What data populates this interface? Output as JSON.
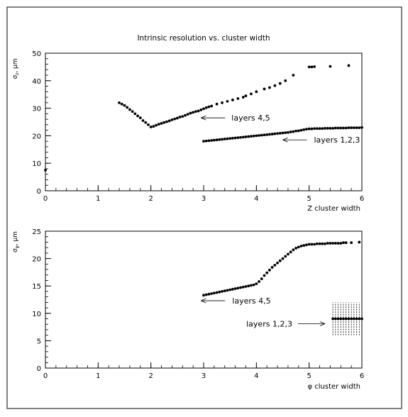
{
  "title": "Intrinsic resolution vs. cluster width",
  "chart_data": [
    {
      "type": "scatter",
      "xlabel": "Z cluster width",
      "ylabel": "σ_z, μm",
      "xlim": [
        0,
        6
      ],
      "ylim": [
        0,
        50
      ],
      "xticks": [
        "0",
        "1",
        "2",
        "3",
        "4",
        "5",
        "6"
      ],
      "yticks": [
        "0",
        "10",
        "20",
        "30",
        "40",
        "50"
      ],
      "grid": false,
      "series": [
        {
          "name": "layers 4,5",
          "x": [
            1.4,
            1.45,
            1.5,
            1.55,
            1.6,
            1.65,
            1.7,
            1.75,
            1.8,
            1.85,
            1.9,
            1.95,
            2.0,
            2.05,
            2.1,
            2.15,
            2.2,
            2.25,
            2.3,
            2.35,
            2.4,
            2.45,
            2.5,
            2.55,
            2.6,
            2.65,
            2.7,
            2.75,
            2.8,
            2.85,
            2.9,
            2.95,
            3.0,
            3.05,
            3.1,
            3.15,
            3.25,
            3.35,
            3.45,
            3.55,
            3.65,
            3.75,
            3.8,
            3.9,
            4.0,
            4.15,
            4.25,
            4.35,
            4.45,
            4.55,
            4.7,
            5.0,
            5.05,
            5.1,
            5.4,
            5.75
          ],
          "y": [
            32.0,
            31.5,
            31.0,
            30.3,
            29.5,
            28.8,
            28.0,
            27.2,
            26.5,
            25.5,
            24.8,
            24.0,
            23.2,
            23.4,
            23.8,
            24.2,
            24.5,
            24.8,
            25.1,
            25.4,
            25.8,
            26.1,
            26.4,
            26.8,
            27.0,
            27.4,
            27.8,
            28.2,
            28.5,
            28.8,
            29.0,
            29.4,
            29.8,
            30.2,
            30.5,
            30.8,
            31.5,
            32.0,
            32.5,
            33.0,
            33.5,
            34.0,
            34.5,
            35.2,
            36.0,
            37.0,
            37.5,
            38.2,
            39.0,
            40.0,
            42.0,
            45.0,
            45.0,
            45.1,
            45.2,
            45.5
          ]
        },
        {
          "name": "layers 1,2,3",
          "x": [
            3.0,
            3.05,
            3.1,
            3.15,
            3.2,
            3.25,
            3.3,
            3.35,
            3.4,
            3.45,
            3.5,
            3.55,
            3.6,
            3.65,
            3.7,
            3.75,
            3.8,
            3.85,
            3.9,
            3.95,
            4.0,
            4.05,
            4.1,
            4.15,
            4.2,
            4.25,
            4.3,
            4.35,
            4.4,
            4.45,
            4.5,
            4.55,
            4.6,
            4.65,
            4.7,
            4.75,
            4.8,
            4.85,
            4.9,
            4.95,
            5.0,
            5.05,
            5.1,
            5.15,
            5.2,
            5.25,
            5.3,
            5.35,
            5.4,
            5.45,
            5.5,
            5.55,
            5.6,
            5.65,
            5.7,
            5.75,
            5.8,
            5.85,
            5.9,
            5.95,
            6.0
          ],
          "y": [
            18.0,
            18.1,
            18.2,
            18.3,
            18.4,
            18.5,
            18.6,
            18.7,
            18.8,
            18.9,
            19.0,
            19.1,
            19.2,
            19.3,
            19.4,
            19.5,
            19.6,
            19.7,
            19.8,
            19.9,
            20.0,
            20.1,
            20.2,
            20.3,
            20.4,
            20.5,
            20.6,
            20.7,
            20.8,
            20.9,
            21.0,
            21.1,
            21.2,
            21.4,
            21.5,
            21.7,
            21.8,
            22.0,
            22.2,
            22.4,
            22.5,
            22.5,
            22.6,
            22.6,
            22.6,
            22.6,
            22.7,
            22.7,
            22.7,
            22.7,
            22.8,
            22.8,
            22.8,
            22.8,
            22.8,
            22.9,
            22.9,
            22.9,
            22.9,
            22.9,
            23.0
          ]
        },
        {
          "name": "",
          "x": [
            0.0
          ],
          "y": [
            7.5
          ]
        }
      ],
      "annotations": [
        {
          "text": "layers 4,5",
          "arrow_to": [
            2.95,
            26.5
          ]
        },
        {
          "text": "layers 1,2,3",
          "arrow_to": [
            4.5,
            18.5
          ]
        }
      ]
    },
    {
      "type": "scatter",
      "xlabel": "φ cluster width",
      "ylabel": "σ_φ, μm",
      "xlim": [
        0,
        6
      ],
      "ylim": [
        0,
        25
      ],
      "xticks": [
        "0",
        "1",
        "2",
        "3",
        "4",
        "5",
        "6"
      ],
      "yticks": [
        "0",
        "5",
        "10",
        "15",
        "20",
        "25"
      ],
      "grid": false,
      "series": [
        {
          "name": "layers 4,5",
          "x": [
            3.0,
            3.05,
            3.1,
            3.15,
            3.2,
            3.25,
            3.3,
            3.35,
            3.4,
            3.45,
            3.5,
            3.55,
            3.6,
            3.65,
            3.7,
            3.75,
            3.8,
            3.85,
            3.9,
            3.95,
            4.0,
            4.05,
            4.1,
            4.15,
            4.2,
            4.25,
            4.3,
            4.35,
            4.4,
            4.45,
            4.5,
            4.55,
            4.6,
            4.65,
            4.7,
            4.75,
            4.8,
            4.85,
            4.9,
            4.95,
            5.0,
            5.05,
            5.1,
            5.15,
            5.2,
            5.25,
            5.3,
            5.35,
            5.4,
            5.45,
            5.5,
            5.55,
            5.6,
            5.65,
            5.7,
            5.8,
            5.95
          ],
          "y": [
            13.3,
            13.4,
            13.5,
            13.6,
            13.7,
            13.8,
            13.9,
            14.0,
            14.1,
            14.2,
            14.3,
            14.4,
            14.5,
            14.6,
            14.7,
            14.8,
            14.9,
            15.0,
            15.1,
            15.2,
            15.4,
            15.8,
            16.3,
            16.9,
            17.4,
            17.9,
            18.4,
            18.8,
            19.2,
            19.6,
            20.0,
            20.4,
            20.8,
            21.2,
            21.6,
            21.9,
            22.1,
            22.3,
            22.4,
            22.5,
            22.6,
            22.6,
            22.6,
            22.7,
            22.7,
            22.7,
            22.7,
            22.8,
            22.8,
            22.8,
            22.8,
            22.8,
            22.8,
            22.9,
            22.9,
            22.9,
            23.0
          ]
        },
        {
          "name": "layers 1,2,3",
          "x": [
            5.45,
            5.5,
            5.55,
            5.6,
            5.65,
            5.7,
            5.75,
            5.8,
            5.85,
            5.9,
            5.95,
            6.0
          ],
          "y": [
            9.0,
            9.0,
            9.0,
            9.0,
            9.0,
            9.0,
            9.0,
            9.0,
            9.0,
            9.0,
            9.0,
            9.0
          ],
          "y_error": [
            3.0,
            3.0,
            3.0,
            3.0,
            3.0,
            3.0,
            3.0,
            3.0,
            3.0,
            3.0,
            3.0,
            3.0
          ]
        }
      ],
      "annotations": [
        {
          "text": "layers 4,5",
          "arrow_to": [
            2.95,
            12.3
          ]
        },
        {
          "text": "layers 1,2,3",
          "arrow_to": [
            5.3,
            8.1
          ]
        }
      ]
    }
  ]
}
